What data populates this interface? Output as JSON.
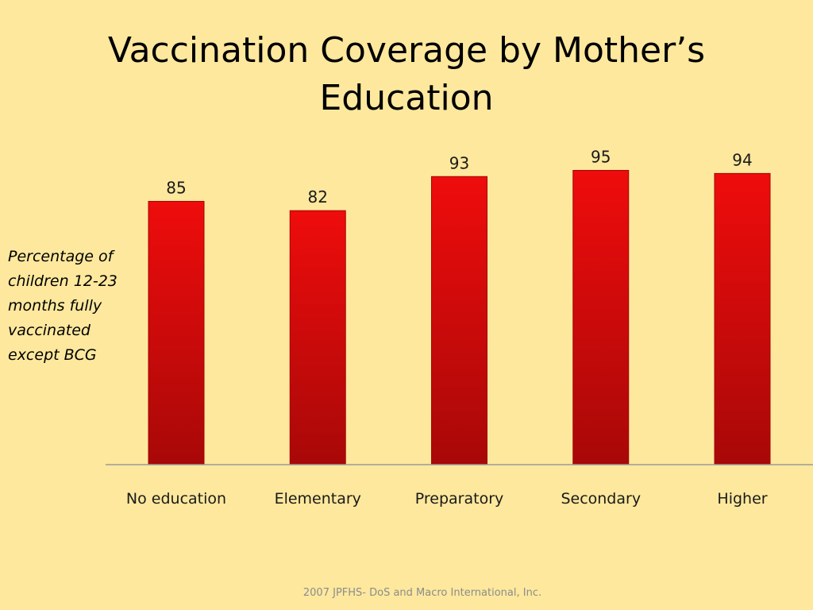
{
  "slide": {
    "title": "Vaccination Coverage by Mother’s Education",
    "side_note": "Percentage of children 12-23 months fully vaccinated except BCG",
    "source": "2007 JPFHS- DoS and Macro International, Inc.",
    "background": "#fde89d"
  },
  "chart_data": {
    "type": "bar",
    "categories": [
      "No education",
      "Elementary",
      "Preparatory",
      "Secondary",
      "Higher"
    ],
    "values": [
      85,
      82,
      93,
      95,
      94
    ],
    "ylim": [
      0,
      100
    ],
    "grid": false,
    "legend": "none",
    "data_labels": true,
    "colors": {
      "bar_top": "#ef0c0c",
      "bar_bottom": "#a80808",
      "bar_edge": "#a30606",
      "axis": "#9a9a9a"
    }
  }
}
